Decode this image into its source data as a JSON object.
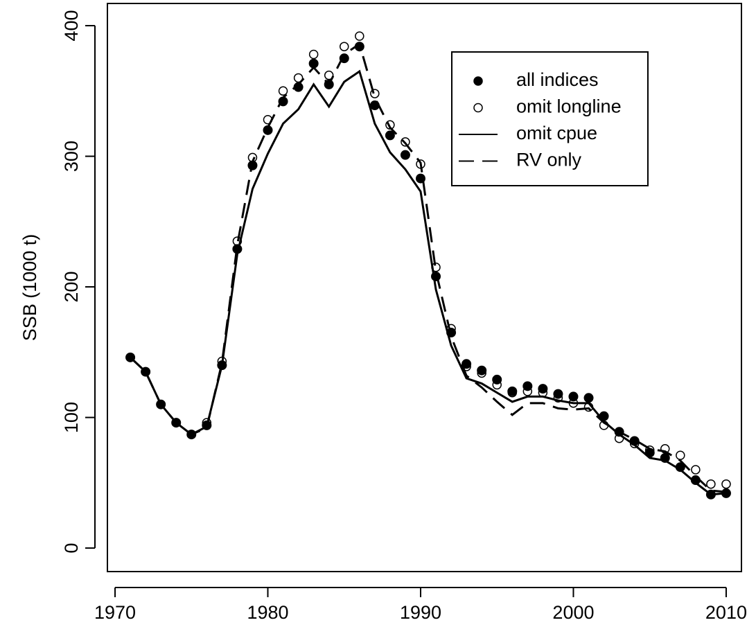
{
  "chart_data": {
    "type": "line",
    "x": [
      1971,
      1972,
      1973,
      1974,
      1975,
      1976,
      1977,
      1978,
      1979,
      1980,
      1981,
      1982,
      1983,
      1984,
      1985,
      1986,
      1987,
      1988,
      1989,
      1990,
      1991,
      1992,
      1993,
      1994,
      1995,
      1996,
      1997,
      1998,
      1999,
      2000,
      2001,
      2002,
      2003,
      2004,
      2005,
      2006,
      2007,
      2008,
      2009,
      2010
    ],
    "y_label": "SSB (1000 t)",
    "xlim": [
      1969.5,
      2011
    ],
    "xticks": [
      1970,
      1980,
      1990,
      2000,
      2010
    ],
    "ylim": [
      -18,
      417
    ],
    "yticks": [
      0,
      100,
      200,
      300,
      400
    ],
    "legend": "top-right",
    "series": [
      {
        "name": "all indices",
        "color": "#000000",
        "marker": "filled",
        "line": "none",
        "values": [
          146,
          135,
          110,
          96,
          87,
          94,
          140,
          229,
          293,
          320,
          342,
          353,
          371,
          355,
          375,
          384,
          339,
          316,
          301,
          283,
          208,
          165,
          141,
          136,
          129,
          120,
          124,
          122,
          118,
          116,
          115,
          101,
          89,
          82,
          73,
          69,
          62,
          52,
          41,
          42
        ]
      },
      {
        "name": "omit longline",
        "color": "#000000",
        "marker": "open",
        "line": "none",
        "values": [
          146,
          135,
          110,
          96,
          87,
          96,
          143,
          235,
          299,
          328,
          350,
          360,
          378,
          362,
          384,
          392,
          348,
          324,
          311,
          294,
          215,
          168,
          139,
          134,
          125,
          119,
          120,
          119,
          115,
          111,
          108,
          94,
          84,
          80,
          75,
          76,
          71,
          60,
          49,
          49
        ]
      },
      {
        "name": "omit cpue",
        "color": "#000000",
        "marker": "none",
        "line": "solid",
        "values": [
          146,
          135,
          110,
          96,
          87,
          93,
          140,
          225,
          275,
          302,
          325,
          336,
          355,
          338,
          357,
          365,
          325,
          303,
          290,
          273,
          198,
          155,
          130,
          126,
          119,
          112,
          116,
          116,
          113,
          111,
          111,
          97,
          87,
          79,
          69,
          67,
          60,
          50,
          41,
          42
        ]
      },
      {
        "name": "RV only",
        "color": "#000000",
        "marker": "none",
        "line": "dashed",
        "values": [
          146,
          135,
          110,
          96,
          87,
          92,
          142,
          232,
          296,
          322,
          345,
          355,
          368,
          355,
          378,
          386,
          345,
          322,
          310,
          295,
          212,
          162,
          132,
          123,
          112,
          102,
          111,
          111,
          107,
          106,
          107,
          96,
          89,
          83,
          76,
          74,
          67,
          55,
          44,
          43
        ]
      }
    ]
  }
}
